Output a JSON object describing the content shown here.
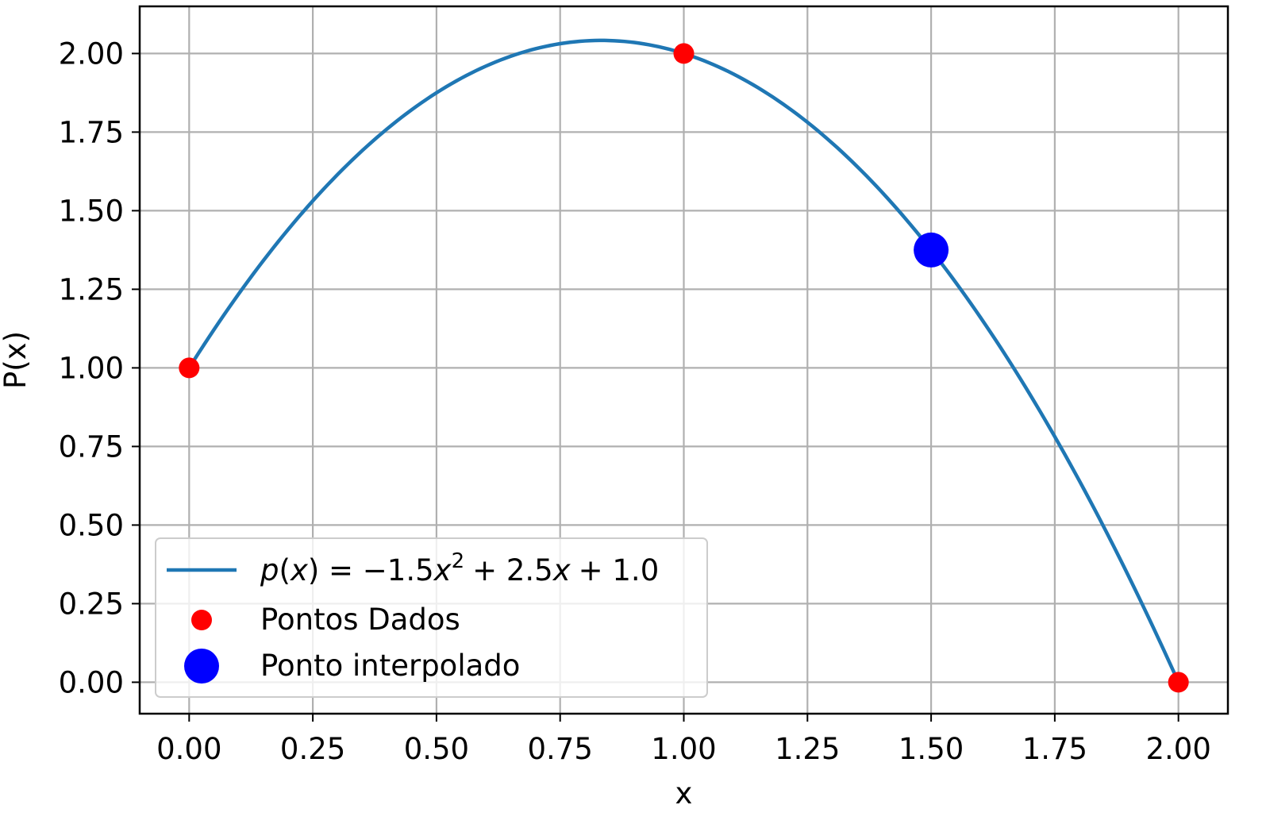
{
  "chart_data": {
    "type": "line",
    "xlabel": "x",
    "ylabel": "P(x)",
    "xlim": [
      -0.1,
      2.1
    ],
    "ylim": [
      -0.1,
      2.15
    ],
    "x_ticks": [
      0.0,
      0.25,
      0.5,
      0.75,
      1.0,
      1.25,
      1.5,
      1.75,
      2.0
    ],
    "x_tick_labels": [
      "0.00",
      "0.25",
      "0.50",
      "0.75",
      "1.00",
      "1.25",
      "1.50",
      "1.75",
      "2.00"
    ],
    "y_ticks": [
      0.0,
      0.25,
      0.5,
      0.75,
      1.0,
      1.25,
      1.5,
      1.75,
      2.0
    ],
    "y_tick_labels": [
      "0.00",
      "0.25",
      "0.50",
      "0.75",
      "1.00",
      "1.25",
      "1.50",
      "1.75",
      "2.00"
    ],
    "grid": true,
    "legend_position": "lower-left",
    "curve": {
      "name": "p(x) = −1.5x² + 2.5x + 1.0",
      "coefficients": {
        "a": -1.5,
        "b": 2.5,
        "c": 1.0
      },
      "x_range": [
        0.0,
        2.0
      ],
      "color": "#1f77b4"
    },
    "series": [
      {
        "name": "Pontos Dados",
        "type": "scatter",
        "color": "#ff0000",
        "points": [
          [
            0.0,
            1.0
          ],
          [
            1.0,
            2.0
          ],
          [
            2.0,
            0.0
          ]
        ]
      },
      {
        "name": "Ponto interpolado",
        "type": "scatter",
        "color": "#0000ff",
        "points": [
          [
            1.5,
            1.375
          ]
        ]
      }
    ],
    "legend": {
      "entries": [
        {
          "label_prefix": "p",
          "label_x": "x",
          "label_mid": "= −1.5",
          "label_sup": "2",
          "label_tail": "+ 2.5",
          "label_end": "+ 1.0"
        },
        {
          "label": "Pontos Dados"
        },
        {
          "label": "Ponto interpolado"
        }
      ]
    }
  }
}
